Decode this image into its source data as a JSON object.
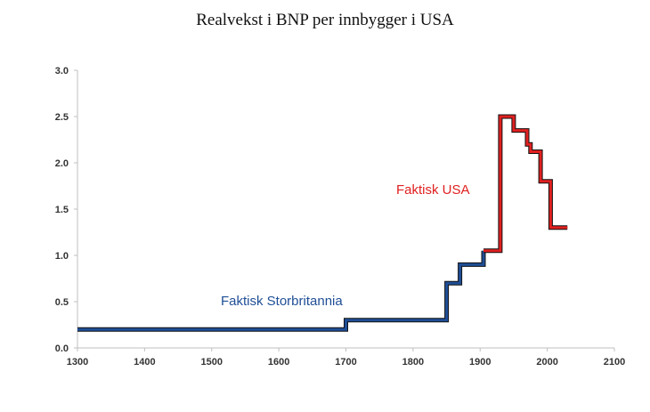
{
  "chart_data": {
    "type": "line",
    "title": "Realvekst i BNP per innbygger  i USA",
    "xlabel": "",
    "ylabel": "",
    "xlim": [
      1300,
      2100
    ],
    "ylim": [
      0,
      3.0
    ],
    "x_ticks": [
      "1300",
      "1400",
      "1500",
      "1600",
      "1700",
      "1800",
      "1900",
      "2000",
      "2100"
    ],
    "y_ticks": [
      "0.0",
      "0.5",
      "1.0",
      "1.5",
      "2.0",
      "2.5",
      "3.0"
    ],
    "grid": false,
    "series": [
      {
        "name": "Faktisk Storbritannia",
        "color": "#1f4e96",
        "step": true,
        "points": [
          [
            1300,
            0.2
          ],
          [
            1700,
            0.2
          ],
          [
            1700,
            0.3
          ],
          [
            1850,
            0.3
          ],
          [
            1850,
            0.7
          ],
          [
            1870,
            0.7
          ],
          [
            1870,
            0.9
          ],
          [
            1905,
            0.9
          ],
          [
            1905,
            1.05
          ]
        ]
      },
      {
        "name": "Faktisk USA",
        "color": "#e02020",
        "step": true,
        "points": [
          [
            1905,
            1.05
          ],
          [
            1930,
            1.05
          ],
          [
            1930,
            2.5
          ],
          [
            1950,
            2.5
          ],
          [
            1950,
            2.35
          ],
          [
            1970,
            2.35
          ],
          [
            1970,
            2.2
          ],
          [
            1975,
            2.2
          ],
          [
            1975,
            2.12
          ],
          [
            1990,
            2.12
          ],
          [
            1990,
            1.8
          ],
          [
            2005,
            1.8
          ],
          [
            2005,
            1.3
          ],
          [
            2030,
            1.3
          ]
        ]
      }
    ]
  }
}
